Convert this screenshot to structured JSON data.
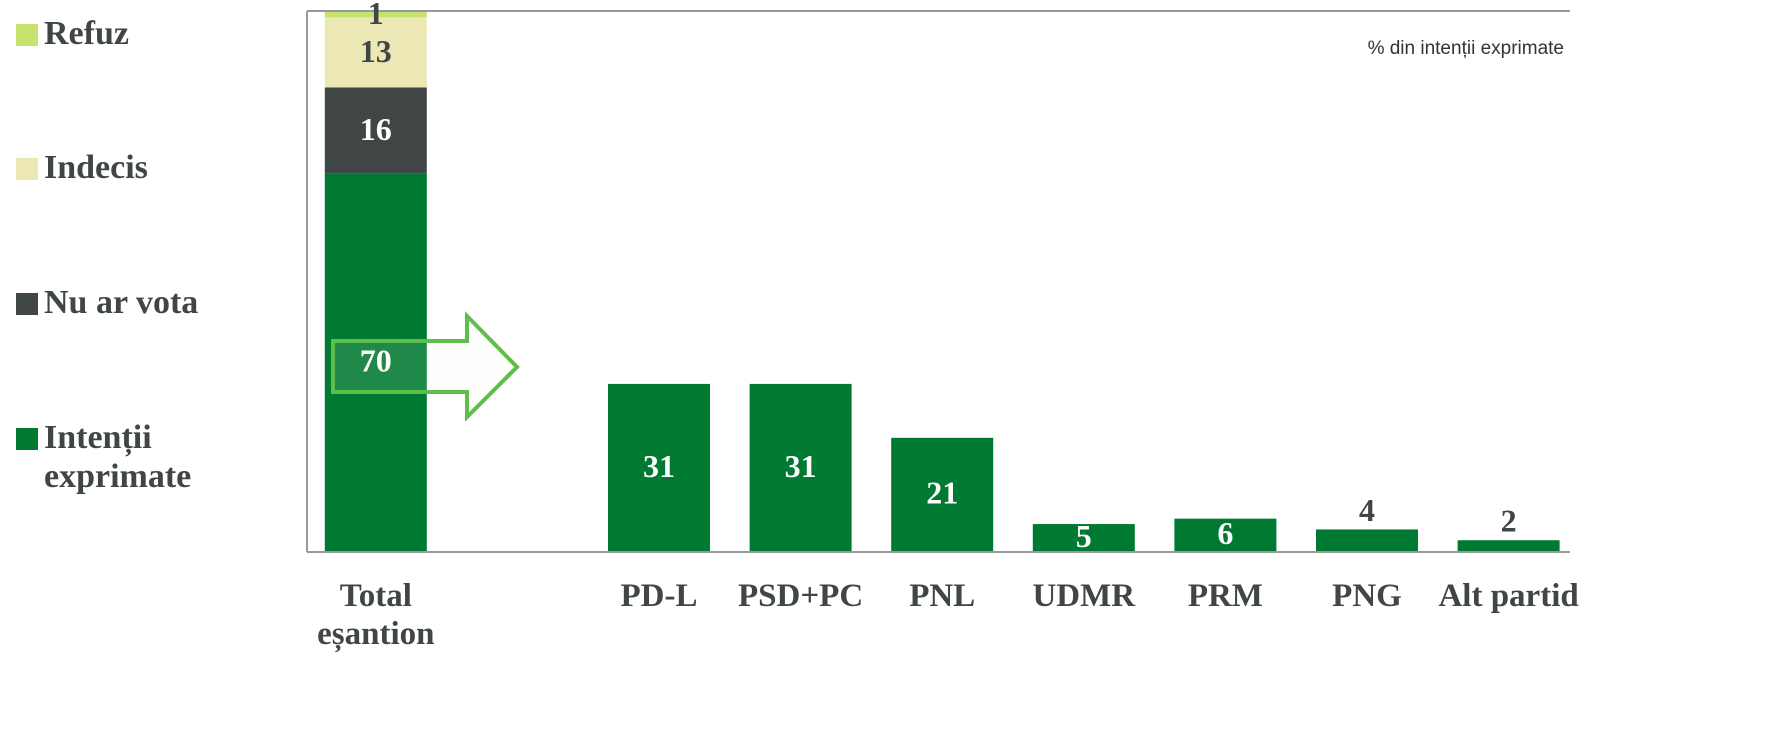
{
  "chart_data": {
    "type": "bar",
    "stacked": true,
    "annotation": "% din intenții exprimate",
    "categories": [
      "Total eșantion",
      null,
      "PD-L",
      "PSD+PC",
      "PNL",
      "UDMR",
      "PRM",
      "PNG",
      "Alt partid"
    ],
    "ylim": [
      0,
      100
    ],
    "series": [
      {
        "name": "Intenții exprimate",
        "color": "#007a33",
        "values": [
          70,
          null,
          31,
          31,
          21,
          5,
          6,
          4,
          2
        ]
      },
      {
        "name": "Nu ar vota",
        "color": "#404545",
        "values": [
          16,
          null,
          null,
          null,
          null,
          null,
          null,
          null,
          null
        ]
      },
      {
        "name": "Indecis",
        "color": "#ebe8b5",
        "values": [
          13,
          null,
          null,
          null,
          null,
          null,
          null,
          null,
          null
        ]
      },
      {
        "name": "Refuz",
        "color": "#c5e36d",
        "values": [
          1,
          null,
          null,
          null,
          null,
          null,
          null,
          null,
          null
        ]
      }
    ]
  }
}
